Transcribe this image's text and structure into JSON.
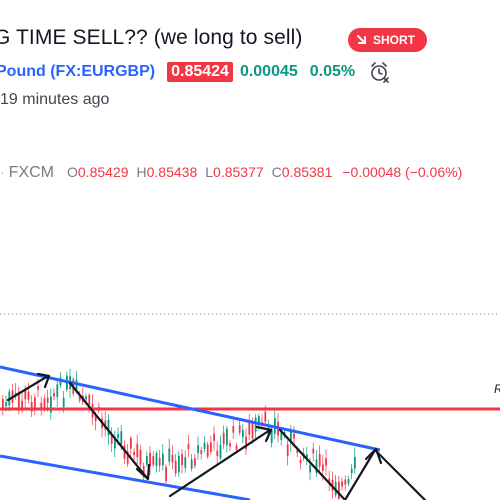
{
  "header": {
    "title": "G TIME SELL?? (we long to sell)",
    "badge_label": "SHORT",
    "symbol": "Pound (FX:EURGBP)",
    "price": "0.85424",
    "change": "0.00045",
    "change_pct": "0.05%",
    "time_ago": "19 minutes ago",
    "colors": {
      "badge": "#f23645",
      "symbol": "#2962ff",
      "positive": "#089981"
    }
  },
  "ohlc": {
    "source": "FXCM",
    "o_label": "O",
    "o": "0.85429",
    "h_label": "H",
    "h": "0.85438",
    "l_label": "L",
    "l": "0.85377",
    "c_label": "C",
    "c": "0.85381",
    "delta": "−0.00048 (−0.06%)"
  },
  "chart": {
    "right_label": "R",
    "colors": {
      "up": "#089981",
      "down": "#f23645",
      "channel": "#2962ff",
      "resistance": "#f23645",
      "arrow": "#131722"
    }
  }
}
